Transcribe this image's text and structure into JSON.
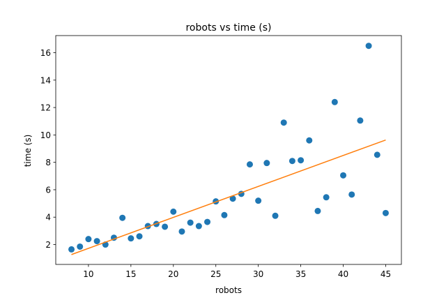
{
  "chart_data": {
    "type": "scatter",
    "title": "robots vs time (s)",
    "xlabel": "robots",
    "ylabel": "time (s)",
    "xlim": [
      6.15,
      46.85
    ],
    "ylim": [
      0.55,
      17.25
    ],
    "xticks": [
      10,
      15,
      20,
      25,
      30,
      35,
      40,
      45
    ],
    "yticks": [
      2,
      4,
      6,
      8,
      10,
      12,
      14,
      16
    ],
    "grid": false,
    "colors": {
      "points": "#1f77b4",
      "fit_line": "#ff7f0e",
      "axes": "#000000",
      "background": "#ffffff"
    },
    "series": [
      {
        "type": "scatter",
        "points": [
          [
            8,
            1.65
          ],
          [
            9,
            1.85
          ],
          [
            10,
            2.4
          ],
          [
            11,
            2.25
          ],
          [
            12,
            2.0
          ],
          [
            13,
            2.5
          ],
          [
            14,
            3.95
          ],
          [
            15,
            2.45
          ],
          [
            16,
            2.6
          ],
          [
            17,
            3.35
          ],
          [
            18,
            3.5
          ],
          [
            19,
            3.3
          ],
          [
            20,
            4.4
          ],
          [
            21,
            2.95
          ],
          [
            22,
            3.6
          ],
          [
            23,
            3.35
          ],
          [
            24,
            3.65
          ],
          [
            25,
            5.15
          ],
          [
            26,
            4.15
          ],
          [
            27,
            5.35
          ],
          [
            28,
            5.7
          ],
          [
            29,
            7.85
          ],
          [
            30,
            5.2
          ],
          [
            31,
            7.95
          ],
          [
            32,
            4.1
          ],
          [
            33,
            10.9
          ],
          [
            34,
            8.1
          ],
          [
            35,
            8.15
          ],
          [
            36,
            9.6
          ],
          [
            37,
            4.45
          ],
          [
            38,
            5.45
          ],
          [
            39,
            12.4
          ],
          [
            40,
            7.05
          ],
          [
            41,
            5.65
          ],
          [
            42,
            11.05
          ],
          [
            43,
            16.5
          ],
          [
            44,
            8.55
          ],
          [
            45,
            4.3
          ]
        ]
      },
      {
        "type": "line",
        "points": [
          [
            8,
            1.27
          ],
          [
            45,
            9.63
          ]
        ]
      }
    ]
  }
}
